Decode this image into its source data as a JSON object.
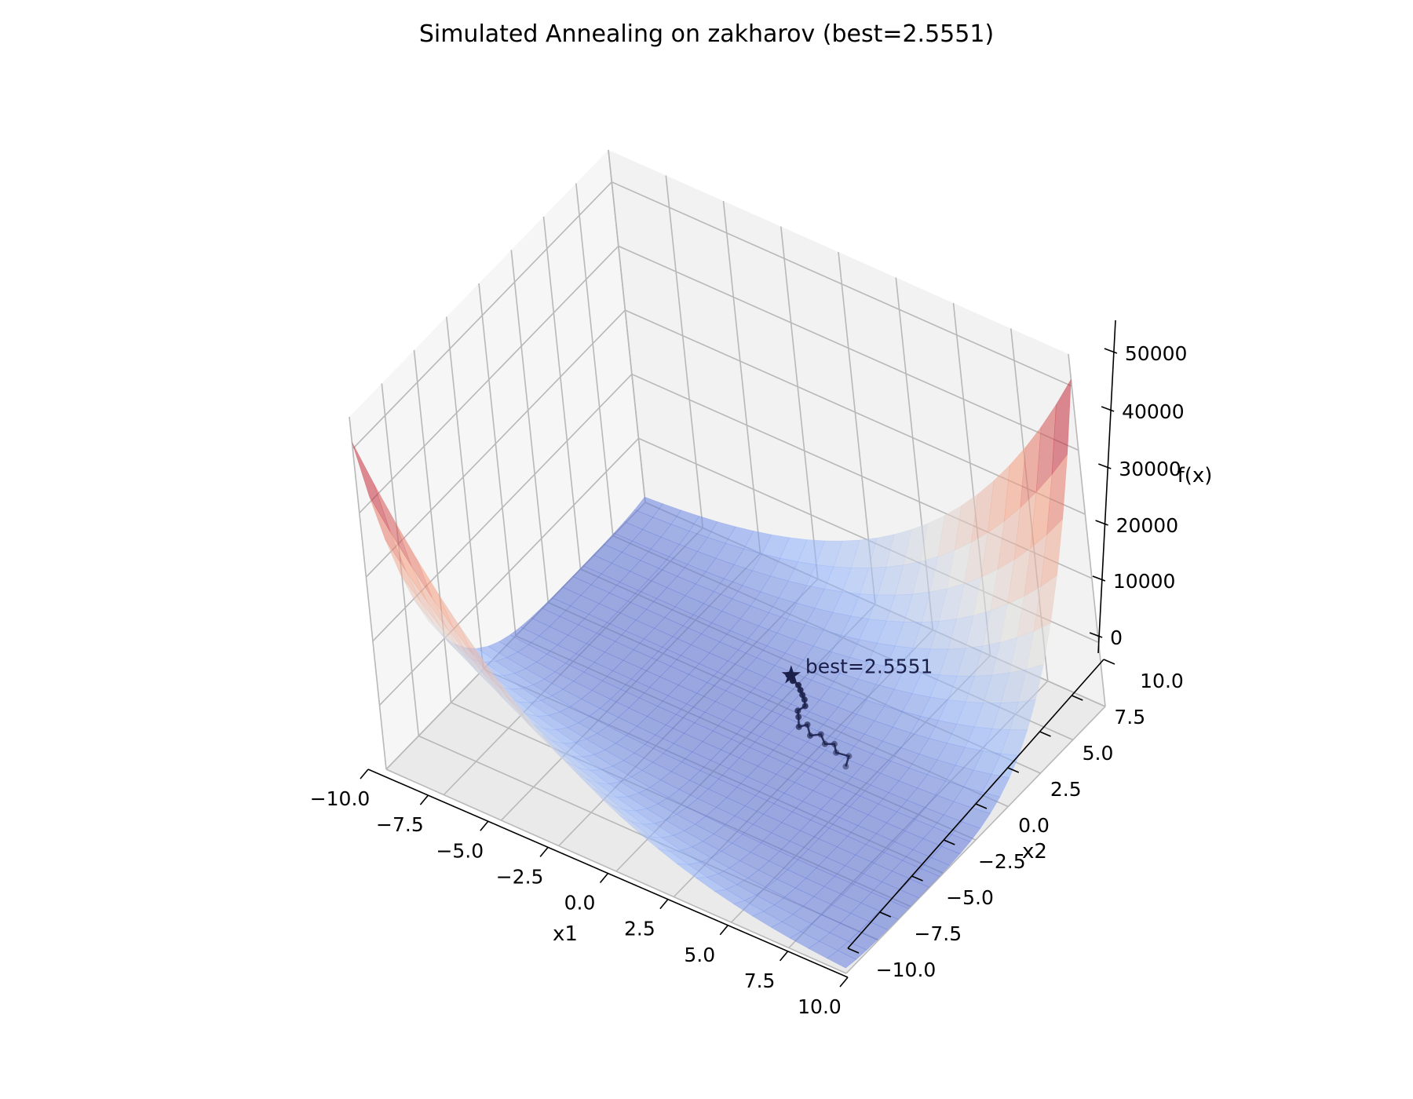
{
  "chart_data": {
    "type": "surface3d",
    "title": "Simulated Annealing on zakharov (best=2.5551)",
    "xlabel": "x1",
    "ylabel": "x2",
    "zlabel": "f(x)",
    "xlim": [
      -10,
      10
    ],
    "ylim": [
      -10,
      10
    ],
    "zlim": [
      0,
      55000
    ],
    "x_ticks": [
      "−10.0",
      "−7.5",
      "−5.0",
      "−2.5",
      "0.0",
      "2.5",
      "5.0",
      "7.5",
      "10.0"
    ],
    "y_ticks": [
      "−10.0",
      "−7.5",
      "−5.0",
      "−2.5",
      "0.0",
      "2.5",
      "5.0",
      "7.5",
      "10.0"
    ],
    "z_ticks": [
      "0",
      "10000",
      "20000",
      "30000",
      "40000",
      "50000"
    ],
    "colormap": "coolwarm",
    "grid": true,
    "surface": {
      "function": "zakharov",
      "grid_points": 26
    },
    "trajectory": {
      "color": "#1a1f4a",
      "points": [
        {
          "x": 3.9,
          "y": 0.8
        },
        {
          "x": 3.7,
          "y": 1.4
        },
        {
          "x": 3.2,
          "y": 1.3
        },
        {
          "x": 2.9,
          "y": 1.7
        },
        {
          "x": 2.6,
          "y": 1.5
        },
        {
          "x": 2.2,
          "y": 1.9
        },
        {
          "x": 1.9,
          "y": 1.6
        },
        {
          "x": 1.5,
          "y": 2.1
        },
        {
          "x": 1.3,
          "y": 1.8
        },
        {
          "x": 1.0,
          "y": 2.3
        },
        {
          "x": 0.8,
          "y": 2.6
        },
        {
          "x": 0.9,
          "y": 3.0
        },
        {
          "x": 0.7,
          "y": 3.3
        },
        {
          "x": 0.5,
          "y": 3.5
        },
        {
          "x": 0.3,
          "y": 3.7
        },
        {
          "x": 0.1,
          "y": 3.9
        },
        {
          "x": -0.2,
          "y": 4.0
        },
        {
          "x": -0.5,
          "y": 4.2
        }
      ]
    },
    "best": {
      "x": -0.5,
      "y": 4.4,
      "z": 2.5551,
      "marker": "★",
      "label": "best=2.5551"
    }
  }
}
